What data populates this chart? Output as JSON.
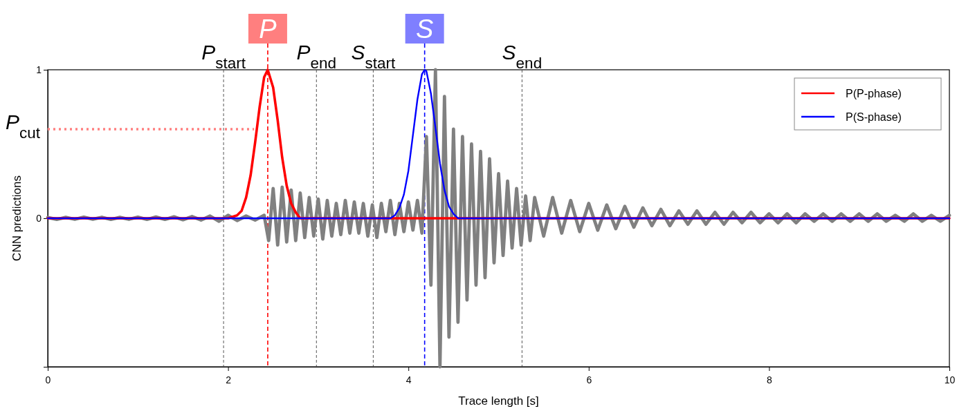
{
  "chart_data": {
    "type": "line",
    "xlabel": "Trace length [s]",
    "ylabel": "CNN predictions",
    "xlim": [
      0,
      10
    ],
    "xticks": [
      0,
      2,
      4,
      6,
      8,
      10
    ],
    "ylim": [
      -1,
      1
    ],
    "yticks": [
      {
        "value": -1,
        "label": null
      },
      0,
      1
    ],
    "legend": "top right",
    "marker": "none",
    "line_style": "solid",
    "series": [
      {
        "color": "#808080",
        "x": [
          0,
          0.1,
          0.2,
          0.3,
          0.4,
          0.5,
          0.6,
          0.7,
          0.8,
          0.9,
          1.0,
          1.1,
          1.2,
          1.3,
          1.4,
          1.5,
          1.6,
          1.7,
          1.8,
          1.9,
          2.0,
          2.1,
          2.2,
          2.3,
          2.4,
          2.45,
          2.5,
          2.55,
          2.6,
          2.65,
          2.7,
          2.75,
          2.8,
          2.85,
          2.9,
          2.95,
          3.0,
          3.05,
          3.1,
          3.15,
          3.2,
          3.25,
          3.3,
          3.35,
          3.4,
          3.45,
          3.5,
          3.55,
          3.6,
          3.65,
          3.7,
          3.75,
          3.8,
          3.85,
          3.9,
          3.95,
          4.0,
          4.05,
          4.1,
          4.15,
          4.2,
          4.25,
          4.3,
          4.35,
          4.4,
          4.45,
          4.5,
          4.55,
          4.6,
          4.65,
          4.7,
          4.75,
          4.8,
          4.85,
          4.9,
          4.95,
          5.0,
          5.05,
          5.1,
          5.15,
          5.2,
          5.25,
          5.3,
          5.35,
          5.4,
          5.5,
          5.6,
          5.7,
          5.8,
          5.9,
          6.0,
          6.1,
          6.2,
          6.3,
          6.4,
          6.5,
          6.6,
          6.7,
          6.8,
          6.9,
          7.0,
          7.1,
          7.2,
          7.3,
          7.4,
          7.5,
          7.6,
          7.7,
          7.8,
          7.9,
          8.0,
          8.1,
          8.2,
          8.3,
          8.4,
          8.5,
          8.6,
          8.7,
          8.8,
          8.9,
          9.0,
          9.1,
          9.2,
          9.3,
          9.4,
          9.5,
          9.6,
          9.7,
          9.8,
          9.9,
          10.0
        ],
        "values": [
          0.005,
          -0.008,
          0.006,
          -0.007,
          0.008,
          -0.006,
          0.007,
          -0.008,
          0.006,
          -0.007,
          0.008,
          -0.008,
          0.009,
          -0.008,
          0.01,
          -0.01,
          0.012,
          -0.012,
          0.015,
          -0.02,
          0.02,
          -0.015,
          0.015,
          -0.012,
          0.02,
          -0.15,
          0.2,
          -0.18,
          0.21,
          -0.16,
          0.19,
          -0.15,
          0.17,
          -0.13,
          0.14,
          -0.12,
          0.13,
          -0.14,
          0.12,
          -0.12,
          0.1,
          -0.11,
          0.12,
          -0.1,
          0.11,
          -0.1,
          0.1,
          -0.12,
          0.09,
          -0.13,
          0.1,
          -0.09,
          0.12,
          -0.11,
          0.1,
          -0.09,
          0.11,
          -0.08,
          0.12,
          -0.1,
          0.55,
          -0.45,
          1.0,
          -1.0,
          0.82,
          -0.8,
          0.6,
          -0.7,
          0.55,
          -0.55,
          0.5,
          -0.45,
          0.45,
          -0.4,
          0.4,
          -0.3,
          0.3,
          -0.25,
          0.25,
          -0.2,
          0.2,
          -0.18,
          0.15,
          -0.15,
          0.14,
          -0.12,
          0.14,
          -0.1,
          0.12,
          -0.09,
          0.1,
          -0.08,
          0.09,
          -0.07,
          0.08,
          -0.06,
          0.07,
          -0.05,
          0.06,
          -0.05,
          0.05,
          -0.04,
          0.05,
          -0.04,
          0.04,
          -0.04,
          0.04,
          -0.03,
          0.04,
          -0.03,
          0.03,
          -0.03,
          0.03,
          -0.03,
          0.03,
          -0.02,
          0.03,
          -0.02,
          0.03,
          -0.02,
          0.03,
          -0.02,
          0.03,
          -0.02,
          0.02,
          -0.02,
          0.03,
          -0.02,
          0.02,
          -0.02,
          0.02
        ]
      },
      {
        "name": "P(P-phase)",
        "color": "#ff0000",
        "x": [
          0,
          2.0,
          2.1,
          2.15,
          2.2,
          2.25,
          2.3,
          2.35,
          2.4,
          2.44,
          2.5,
          2.55,
          2.6,
          2.65,
          2.7,
          2.75,
          2.8,
          10
        ],
        "values": [
          0,
          0,
          0.02,
          0.05,
          0.14,
          0.29,
          0.51,
          0.75,
          0.95,
          1,
          0.88,
          0.66,
          0.41,
          0.22,
          0.1,
          0.04,
          0,
          0
        ]
      },
      {
        "name": "P(S-phase)",
        "color": "#0000ff",
        "x": [
          0,
          3.8,
          3.85,
          3.9,
          3.95,
          4.0,
          4.05,
          4.1,
          4.15,
          4.18,
          4.2,
          4.25,
          4.3,
          4.35,
          4.4,
          4.45,
          4.5,
          4.55,
          10
        ],
        "values": [
          0,
          0,
          0.02,
          0.07,
          0.16,
          0.32,
          0.56,
          0.8,
          0.97,
          1,
          0.99,
          0.84,
          0.61,
          0.37,
          0.19,
          0.08,
          0.03,
          0,
          0
        ]
      }
    ],
    "ref_lines": [
      {
        "axis": "x",
        "value": 1.95,
        "label": "P$_{start}$",
        "line_style": "dashed"
      },
      {
        "axis": "x",
        "value": 2.98,
        "label": "P$_{end}$",
        "line_style": "dashed"
      },
      {
        "axis": "x",
        "value": 3.61,
        "label": "S$_{start}$",
        "line_style": "dashed"
      },
      {
        "axis": "x",
        "value": 5.26,
        "label": "S$_{end}$",
        "line_style": "dashed"
      },
      {
        "axis": "x",
        "value": 2.44,
        "label": "P",
        "color": "#ff0000",
        "line_style": "dashed"
      },
      {
        "axis": "x",
        "value": 4.18,
        "label": "S",
        "color": "#0000ff",
        "line_style": "dashed"
      },
      {
        "axis": "y",
        "value": 0.6,
        "label": "P$_{cut}$",
        "color": "#ff8080",
        "line_style": "dotted"
      }
    ]
  }
}
